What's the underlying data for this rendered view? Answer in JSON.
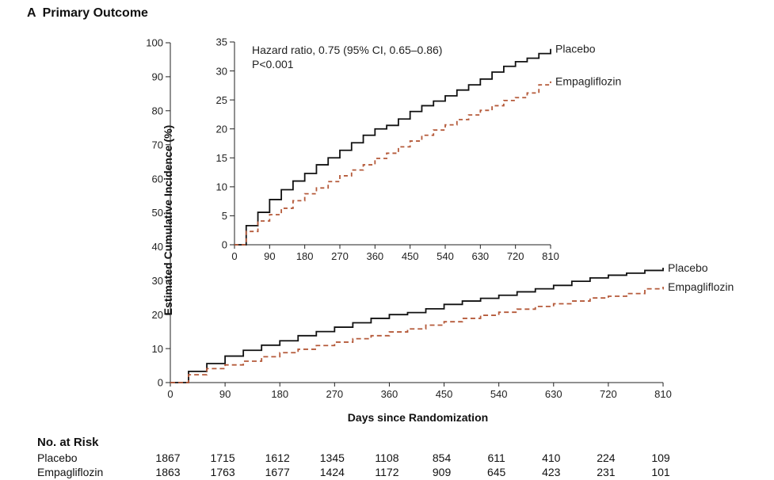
{
  "panel": {
    "letter": "A",
    "title": "Primary Outcome"
  },
  "colors": {
    "placebo": "#111111",
    "empagliflozin": "#b55a3a"
  },
  "chart_data": [
    {
      "type": "line",
      "id": "main",
      "xlabel": "Days since Randomization",
      "ylabel": "Estimated Cumulative Incidence (%)",
      "xlim": [
        0,
        810
      ],
      "ylim": [
        0,
        100
      ],
      "xticks": [
        0,
        90,
        180,
        270,
        360,
        450,
        540,
        630,
        720,
        810
      ],
      "yticks": [
        0,
        10,
        20,
        30,
        40,
        50,
        60,
        70,
        80,
        90,
        100
      ],
      "x": [
        0,
        30,
        60,
        90,
        120,
        150,
        180,
        210,
        240,
        270,
        300,
        330,
        360,
        390,
        420,
        450,
        480,
        510,
        540,
        570,
        600,
        630,
        660,
        690,
        720,
        750,
        780,
        810
      ],
      "series": [
        {
          "name": "Placebo",
          "style": "solid",
          "values": [
            0,
            3.3,
            5.6,
            7.8,
            9.5,
            11,
            12.3,
            13.8,
            15,
            16.3,
            17.6,
            18.9,
            20,
            20.6,
            21.7,
            23,
            24,
            24.8,
            25.7,
            26.7,
            27.6,
            28.6,
            29.8,
            30.8,
            31.6,
            32.2,
            33,
            33.8
          ]
        },
        {
          "name": "Empagliflozin",
          "style": "dashed",
          "values": [
            0,
            2.3,
            4.1,
            5.2,
            6.3,
            7.6,
            8.8,
            9.8,
            10.9,
            11.9,
            12.9,
            13.8,
            14.9,
            15.8,
            16.9,
            17.9,
            18.9,
            19.8,
            20.7,
            21.6,
            22.4,
            23.2,
            24,
            24.9,
            25.4,
            26.2,
            27.6,
            28.2
          ]
        }
      ]
    },
    {
      "type": "line",
      "id": "inset",
      "xlim": [
        0,
        810
      ],
      "ylim": [
        0,
        35
      ],
      "xticks": [
        0,
        90,
        180,
        270,
        360,
        450,
        540,
        630,
        720,
        810
      ],
      "yticks": [
        0,
        5,
        10,
        15,
        20,
        25,
        30,
        35
      ],
      "annotation": [
        "Hazard ratio, 0.75 (95% CI, 0.65–0.86)",
        "P<0.001"
      ]
    }
  ],
  "risk_table": {
    "title": "No. at Risk",
    "rows": [
      {
        "label": "Placebo",
        "values": [
          "1867",
          "1715",
          "1612",
          "1345",
          "1108",
          "854",
          "611",
          "410",
          "224",
          "109"
        ]
      },
      {
        "label": "Empagliflozin",
        "values": [
          "1863",
          "1763",
          "1677",
          "1424",
          "1172",
          "909",
          "645",
          "423",
          "231",
          "101"
        ]
      }
    ]
  }
}
